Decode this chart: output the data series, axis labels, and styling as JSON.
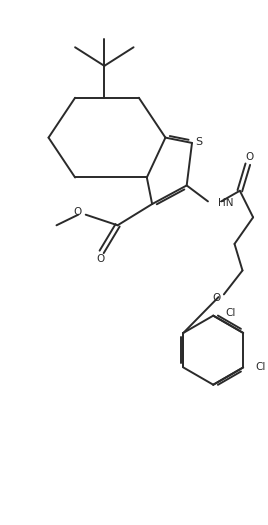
{
  "bg_color": "#ffffff",
  "line_color": "#2a2a2a",
  "line_width": 1.4,
  "figsize": [
    2.68,
    5.25
  ],
  "dpi": 100,
  "font_size": 7.5,
  "xlim": [
    0,
    10
  ],
  "ylim": [
    0,
    19.6
  ]
}
